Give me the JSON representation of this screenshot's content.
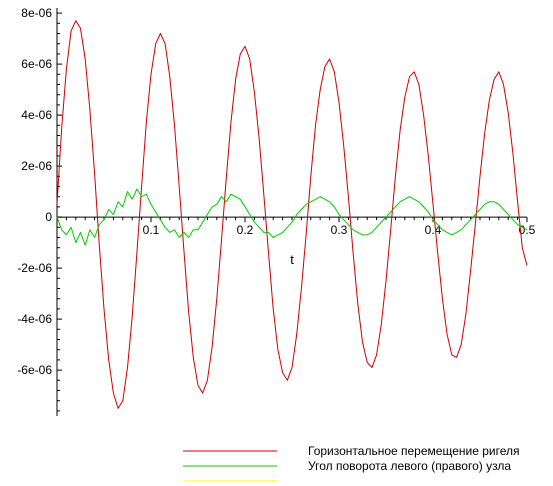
{
  "chart_data": {
    "type": "line",
    "title": "",
    "xlabel": "t",
    "ylabel": "",
    "xlim": [
      0,
      0.5
    ],
    "ylim": [
      -7.8e-06,
      8.2e-06
    ],
    "x_ticks": [
      {
        "value": 0.1,
        "label": "0.1"
      },
      {
        "value": 0.2,
        "label": "0.2"
      },
      {
        "value": 0.3,
        "label": "0.3"
      },
      {
        "value": 0.4,
        "label": "0.4"
      },
      {
        "value": 0.5,
        "label": "0.5"
      }
    ],
    "y_ticks": [
      {
        "value": 8e-06,
        "label": "8e-06"
      },
      {
        "value": 6e-06,
        "label": "6e-06"
      },
      {
        "value": 4e-06,
        "label": "4e-06"
      },
      {
        "value": 2e-06,
        "label": "2e-06"
      },
      {
        "value": 0,
        "label": "0"
      },
      {
        "value": -2e-06,
        "label": "-2e-06"
      },
      {
        "value": -4e-06,
        "label": "-4e-06"
      },
      {
        "value": -6e-06,
        "label": "-6e-06"
      }
    ],
    "grid": false,
    "legend_position": "bottom-right",
    "series": [
      {
        "name": "Горизонтальное перемещение ригеля",
        "color": "#cc0000",
        "x": [
          0.0,
          0.005,
          0.01,
          0.015,
          0.02,
          0.025,
          0.03,
          0.035,
          0.04,
          0.045,
          0.05,
          0.055,
          0.06,
          0.065,
          0.07,
          0.075,
          0.08,
          0.085,
          0.09,
          0.095,
          0.1,
          0.105,
          0.11,
          0.115,
          0.12,
          0.125,
          0.13,
          0.135,
          0.14,
          0.145,
          0.15,
          0.155,
          0.16,
          0.165,
          0.17,
          0.175,
          0.18,
          0.185,
          0.19,
          0.195,
          0.2,
          0.205,
          0.21,
          0.215,
          0.22,
          0.225,
          0.23,
          0.235,
          0.24,
          0.245,
          0.25,
          0.255,
          0.26,
          0.265,
          0.27,
          0.275,
          0.28,
          0.285,
          0.29,
          0.295,
          0.3,
          0.305,
          0.31,
          0.315,
          0.32,
          0.325,
          0.33,
          0.335,
          0.34,
          0.345,
          0.35,
          0.355,
          0.36,
          0.365,
          0.37,
          0.375,
          0.38,
          0.385,
          0.39,
          0.395,
          0.4,
          0.405,
          0.41,
          0.415,
          0.42,
          0.425,
          0.43,
          0.435,
          0.44,
          0.445,
          0.45,
          0.455,
          0.46,
          0.465,
          0.47,
          0.475,
          0.48,
          0.485,
          0.49,
          0.495,
          0.5
        ],
        "y": [
          5e-07,
          3.5e-06,
          5.8e-06,
          7.3e-06,
          7.7e-06,
          7.4e-06,
          6.2e-06,
          4.2e-06,
          1.7e-06,
          -1.1e-06,
          -3.6e-06,
          -5.6e-06,
          -6.9e-06,
          -7.5e-06,
          -7.2e-06,
          -5.9e-06,
          -3.9e-06,
          -1.4e-06,
          1.2e-06,
          3.7e-06,
          5.6e-06,
          6.8e-06,
          7.2e-06,
          6.8e-06,
          5.5e-06,
          3.6e-06,
          1.2e-06,
          -1.3e-06,
          -3.7e-06,
          -5.5e-06,
          -6.6e-06,
          -6.9e-06,
          -6.4e-06,
          -5.1e-06,
          -3.2e-06,
          -9e-07,
          1.5e-06,
          3.7e-06,
          5.4e-06,
          6.4e-06,
          6.7e-06,
          6.2e-06,
          4.9e-06,
          3.1e-06,
          9e-07,
          -1.4e-06,
          -3.6e-06,
          -5.2e-06,
          -6.1e-06,
          -6.4e-06,
          -5.9e-06,
          -4.6e-06,
          -2.8e-06,
          -7e-07,
          1.6e-06,
          3.6e-06,
          5e-06,
          5.9e-06,
          6.2e-06,
          5.7e-06,
          4.5e-06,
          2.8e-06,
          8e-07,
          -1.4e-06,
          -3.4e-06,
          -4.9e-06,
          -5.7e-06,
          -5.9e-06,
          -5.4e-06,
          -4.2e-06,
          -2.5e-06,
          -5e-07,
          1.6e-06,
          3.4e-06,
          4.7e-06,
          5.5e-06,
          5.7e-06,
          5.2e-06,
          4e-06,
          2.4e-06,
          5e-07,
          -1.4e-06,
          -3.2e-06,
          -4.6e-06,
          -5.4e-06,
          -5.5e-06,
          -5e-06,
          -3.8e-06,
          -2.1e-06,
          -3e-07,
          1.6e-06,
          3.3e-06,
          4.6e-06,
          5.4e-06,
          5.7e-06,
          5.2e-06,
          4.1e-06,
          2.5e-06,
          6e-07,
          -1.2e-06,
          -1.9e-06
        ]
      },
      {
        "name": "Угол поворота левого (правого) узла",
        "color": "#00cc00",
        "x": [
          0.0,
          0.005,
          0.01,
          0.015,
          0.02,
          0.025,
          0.03,
          0.035,
          0.04,
          0.045,
          0.05,
          0.055,
          0.06,
          0.065,
          0.07,
          0.075,
          0.08,
          0.085,
          0.09,
          0.095,
          0.1,
          0.105,
          0.11,
          0.115,
          0.12,
          0.125,
          0.13,
          0.135,
          0.14,
          0.145,
          0.15,
          0.155,
          0.16,
          0.165,
          0.17,
          0.175,
          0.18,
          0.185,
          0.19,
          0.195,
          0.2,
          0.205,
          0.21,
          0.215,
          0.22,
          0.225,
          0.23,
          0.235,
          0.24,
          0.245,
          0.25,
          0.255,
          0.26,
          0.265,
          0.27,
          0.275,
          0.28,
          0.285,
          0.29,
          0.295,
          0.3,
          0.305,
          0.31,
          0.315,
          0.32,
          0.325,
          0.33,
          0.335,
          0.34,
          0.345,
          0.35,
          0.355,
          0.36,
          0.365,
          0.37,
          0.375,
          0.38,
          0.385,
          0.39,
          0.395,
          0.4,
          0.405,
          0.41,
          0.415,
          0.42,
          0.425,
          0.43,
          0.435,
          0.44,
          0.445,
          0.45,
          0.455,
          0.46,
          0.465,
          0.47,
          0.475,
          0.48,
          0.485,
          0.49,
          0.495,
          0.5
        ],
        "y": [
          0.0,
          -5e-07,
          -7e-07,
          -4e-07,
          -1e-06,
          -6e-07,
          -1.1e-06,
          -5e-07,
          -8e-07,
          -3e-07,
          -1e-07,
          3e-07,
          1e-07,
          6e-07,
          4e-07,
          1e-06,
          7e-07,
          1.1e-06,
          8e-07,
          9e-07,
          5e-07,
          2e-07,
          -1e-07,
          -4e-07,
          -6e-07,
          -5e-07,
          -8e-07,
          -6e-07,
          -8e-07,
          -5e-07,
          -5e-07,
          -2e-07,
          1e-07,
          4e-07,
          5e-07,
          8e-07,
          6e-07,
          9e-07,
          8e-07,
          7e-07,
          4e-07,
          1e-07,
          -2e-07,
          -4e-07,
          -6e-07,
          -6e-07,
          -8e-07,
          -7e-07,
          -6e-07,
          -4e-07,
          -2e-07,
          1e-07,
          3e-07,
          5e-07,
          6e-07,
          7e-07,
          8e-07,
          7e-07,
          6e-07,
          4e-07,
          1e-07,
          -1e-07,
          -3e-07,
          -5e-07,
          -6e-07,
          -7e-07,
          -7e-07,
          -6e-07,
          -4e-07,
          -2e-07,
          0.0,
          2e-07,
          4e-07,
          6e-07,
          7e-07,
          8e-07,
          7e-07,
          6e-07,
          4e-07,
          2e-07,
          -1e-07,
          -3e-07,
          -5e-07,
          -6e-07,
          -7e-07,
          -6e-07,
          -5e-07,
          -3e-07,
          -1e-07,
          1e-07,
          3e-07,
          5e-07,
          6e-07,
          6e-07,
          5e-07,
          3e-07,
          1e-07,
          -1e-07,
          -3e-07,
          -4e-07,
          -5e-07
        ]
      }
    ],
    "legend_extra": {
      "name": "",
      "color": "#ffff00"
    }
  }
}
